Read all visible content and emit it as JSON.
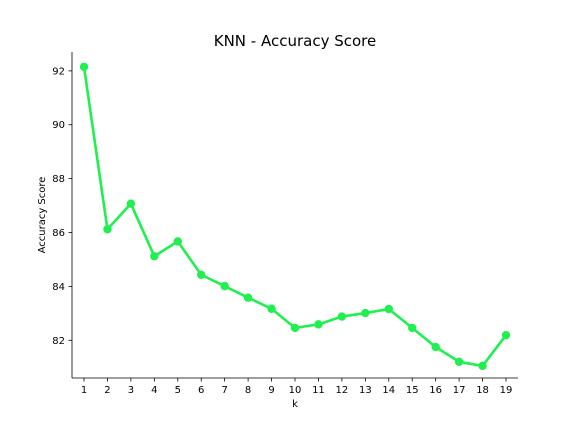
{
  "chart_data": {
    "type": "line",
    "title": "KNN - Accuracy Score",
    "xlabel": "k",
    "ylabel": "Accuracy Score",
    "x": [
      "1",
      "2",
      "3",
      "4",
      "5",
      "6",
      "7",
      "8",
      "9",
      "10",
      "11",
      "12",
      "13",
      "14",
      "15",
      "16",
      "17",
      "18",
      "19"
    ],
    "series": [
      {
        "values": [
          92.15,
          86.12,
          87.07,
          85.12,
          85.67,
          84.43,
          84.01,
          83.58,
          83.17,
          82.46,
          82.59,
          82.88,
          83.01,
          83.16,
          82.46,
          81.75,
          81.2,
          81.05,
          82.19
        ]
      }
    ],
    "ylim": [
      80.6,
      92.7
    ],
    "yticks": [
      82,
      84,
      86,
      88,
      90,
      92
    ],
    "grid": false,
    "color": "#1ff04f"
  }
}
